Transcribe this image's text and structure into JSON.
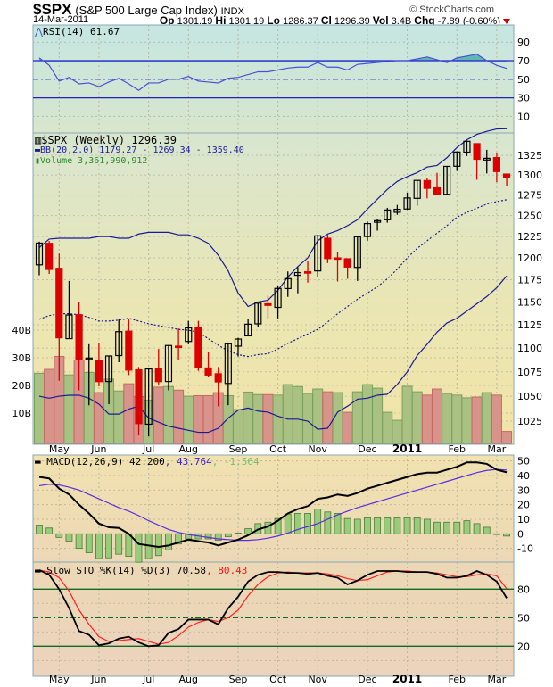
{
  "header": {
    "symbol": "$SPX",
    "name": "(S&P 500 Large Cap Index)",
    "exchange": "INDX",
    "brand": "© StockCharts.com",
    "date": "14-Mar-2011",
    "op_label": "Op",
    "op": "1301.19",
    "hi_label": "Hi",
    "hi": "1301.19",
    "lo_label": "Lo",
    "lo": "1286.37",
    "cl_label": "Cl",
    "cl": "1296.39",
    "vol_label": "Vol",
    "vol": "3.4B",
    "chg_label": "Chg",
    "chg": "-7.89 (-0.60%)",
    "chg_direction": "down"
  },
  "legends": {
    "rsi": "RSI(14) 61.67",
    "price": "$SPX (Weekly) 1296.39",
    "bb": "BB(20,2.0) 1179.27 - 1269.34 - 1359.40",
    "volume": "Volume 3,361,990,912",
    "macd_main": "MACD(12,26,9) 42.200",
    "macd_signal": ", 43.764",
    "macd_hist": ", -1.564",
    "sto_main": "Slow STO %K(14) %D(3) 70.58",
    "sto_d": ", 80.43"
  },
  "colors": {
    "up_candle": "#000000",
    "down_candle": "#dd0000",
    "bb": "#1a1a99",
    "volume_up": "#a9c283",
    "volume_down": "#d8948a",
    "rsi": "#4a50d8",
    "macd": "#000000",
    "macd_signal": "#5a2de0",
    "macd_hist": "#98cc78",
    "sto_k": "#000000",
    "sto_d": "#ff2020"
  },
  "chart_data": [
    {
      "type": "candlestick",
      "title": "$SPX (Weekly)",
      "yscale": "log",
      "ylim": [
        1005,
        1360
      ],
      "grid": true,
      "y_ticks": [
        1025,
        1050,
        1075,
        1100,
        1125,
        1150,
        1175,
        1200,
        1225,
        1250,
        1275,
        1300,
        1325
      ],
      "x_ticks": [
        {
          "label": "May",
          "date": "2010-05-07"
        },
        {
          "label": "Jun",
          "date": "2010-06-04"
        },
        {
          "label": "Jul",
          "date": "2010-07-09"
        },
        {
          "label": "Aug",
          "date": "2010-08-06"
        },
        {
          "label": "Sep",
          "date": "2010-09-10"
        },
        {
          "label": "Oct",
          "date": "2010-10-08"
        },
        {
          "label": "Nov",
          "date": "2010-11-05"
        },
        {
          "label": "Dec",
          "date": "2010-12-10"
        },
        {
          "label": "2011",
          "date": "2011-01-07",
          "bold": true
        },
        {
          "label": "Feb",
          "date": "2011-02-11"
        },
        {
          "label": "Mar",
          "date": "2011-03-11"
        }
      ],
      "dates": [
        "2010-04-23",
        "2010-04-30",
        "2010-05-07",
        "2010-05-14",
        "2010-05-21",
        "2010-05-28",
        "2010-06-04",
        "2010-06-11",
        "2010-06-18",
        "2010-06-25",
        "2010-07-02",
        "2010-07-09",
        "2010-07-16",
        "2010-07-23",
        "2010-07-30",
        "2010-08-06",
        "2010-08-13",
        "2010-08-20",
        "2010-08-27",
        "2010-09-03",
        "2010-09-10",
        "2010-09-17",
        "2010-09-24",
        "2010-10-01",
        "2010-10-08",
        "2010-10-15",
        "2010-10-22",
        "2010-10-29",
        "2010-11-05",
        "2010-11-12",
        "2010-11-19",
        "2010-11-26",
        "2010-12-03",
        "2010-12-10",
        "2010-12-17",
        "2010-12-23",
        "2010-12-31",
        "2011-01-07",
        "2011-01-14",
        "2011-01-21",
        "2011-01-28",
        "2011-02-04",
        "2011-02-11",
        "2011-02-18",
        "2011-02-25",
        "2011-03-04",
        "2011-03-11",
        "2011-03-14"
      ],
      "open": [
        1192,
        1217,
        1188,
        1110,
        1136,
        1088,
        1087,
        1065,
        1092,
        1118,
        1077,
        1022,
        1078,
        1065,
        1102,
        1107,
        1122,
        1079,
        1073,
        1063,
        1102,
        1113,
        1126,
        1148,
        1144,
        1165,
        1180,
        1184,
        1185,
        1223,
        1200,
        1199,
        1189,
        1225,
        1242,
        1245,
        1254,
        1258,
        1271,
        1293,
        1284,
        1276,
        1311,
        1329,
        1340,
        1319,
        1322,
        1301.19
      ],
      "high": [
        1219,
        1219.8,
        1205,
        1173.6,
        1150,
        1104,
        1105.7,
        1092,
        1131,
        1131,
        1080,
        1078,
        1099,
        1103,
        1120.9,
        1129.2,
        1129.2,
        1095.6,
        1080,
        1105,
        1110.9,
        1131.5,
        1148.9,
        1157,
        1167.7,
        1184.4,
        1189.4,
        1196,
        1227,
        1227.1,
        1207,
        1199,
        1225.6,
        1243,
        1246,
        1259.4,
        1263,
        1278,
        1293,
        1296,
        1302.7,
        1311,
        1330,
        1344,
        1340,
        1332,
        1327.7,
        1301.19
      ],
      "low": [
        1180,
        1181.6,
        1065.8,
        1110,
        1055.9,
        1040.8,
        1060,
        1042,
        1085,
        1071.6,
        1010.9,
        1010,
        1062,
        1056,
        1087,
        1104,
        1076,
        1069.6,
        1039.7,
        1040.9,
        1091,
        1113,
        1122.8,
        1131.9,
        1131.9,
        1155.7,
        1159.7,
        1171.7,
        1177.7,
        1194,
        1173,
        1176,
        1173.6,
        1220,
        1232,
        1241.5,
        1251,
        1257,
        1262,
        1271,
        1275,
        1276,
        1305,
        1324,
        1294,
        1302,
        1291,
        1286.37
      ],
      "close": [
        1217.28,
        1186.69,
        1110.88,
        1135.68,
        1087.69,
        1089.41,
        1064.88,
        1091.6,
        1117.51,
        1076.76,
        1022.58,
        1077.96,
        1064.88,
        1102.66,
        1101.6,
        1121.64,
        1079.25,
        1071.69,
        1064.59,
        1104.51,
        1109.55,
        1125.59,
        1148.67,
        1146.24,
        1165.15,
        1176.19,
        1183.08,
        1183.26,
        1225.85,
        1199.21,
        1199.73,
        1189.4,
        1224.71,
        1240.4,
        1243.91,
        1256.77,
        1257.64,
        1271.5,
        1293.24,
        1283.35,
        1276.34,
        1310.87,
        1329.15,
        1343.01,
        1319.88,
        1321.15,
        1304.28,
        1296.39
      ],
      "bb_upper": [
        1212,
        1222,
        1223,
        1223,
        1223,
        1223,
        1225,
        1225,
        1223,
        1223,
        1228,
        1230,
        1230,
        1230,
        1227,
        1227,
        1223,
        1217,
        1203,
        1185,
        1160,
        1145,
        1150,
        1152,
        1163,
        1178,
        1190,
        1200,
        1220,
        1228,
        1232,
        1238,
        1245,
        1258,
        1270,
        1282,
        1292,
        1298,
        1303,
        1310,
        1312,
        1322,
        1335,
        1345,
        1352,
        1356,
        1359,
        1359.4
      ],
      "bb_middle": [
        1131,
        1135,
        1137,
        1137,
        1136,
        1133,
        1129,
        1129,
        1130,
        1132,
        1129,
        1126,
        1124,
        1122,
        1120,
        1119,
        1117,
        1110,
        1103,
        1097,
        1093,
        1091,
        1093,
        1094,
        1099,
        1105,
        1110,
        1115,
        1120,
        1128,
        1137,
        1145,
        1153,
        1160,
        1167,
        1176,
        1187,
        1200,
        1211,
        1220,
        1229,
        1238,
        1248,
        1254,
        1259,
        1264,
        1267,
        1269.34
      ],
      "bb_lower": [
        1050,
        1048,
        1050,
        1051,
        1051,
        1048,
        1042,
        1032,
        1032,
        1037,
        1040,
        1028,
        1024,
        1020,
        1018,
        1016,
        1014,
        1014,
        1018,
        1028,
        1036,
        1038,
        1035,
        1034,
        1030,
        1027,
        1027,
        1025,
        1017,
        1018,
        1034,
        1040,
        1047,
        1048,
        1051,
        1052,
        1062,
        1075,
        1092,
        1104,
        1117,
        1127,
        1132,
        1140,
        1148,
        1156,
        1166,
        1179.27
      ],
      "volume_ticks": [
        "10B",
        "20B",
        "30B",
        "40B"
      ],
      "volume_billions": [
        24.4,
        25.8,
        30.5,
        23.8,
        29.2,
        24.7,
        17.4,
        22.3,
        18,
        20.6,
        16,
        14.7,
        19.4,
        19.6,
        18.3,
        16.1,
        16.3,
        16.3,
        17.4,
        16.3,
        11.3,
        17.6,
        16.7,
        16.7,
        16.5,
        20.3,
        19.6,
        17.1,
        18.7,
        17.7,
        17.4,
        10.3,
        17.7,
        20.3,
        19,
        10.3,
        7.4,
        19.7,
        17.7,
        16.5,
        18.7,
        17.1,
        16.5,
        15.5,
        15.8,
        17.4,
        16.5,
        3.36
      ]
    },
    {
      "type": "line",
      "title": "RSI(14)",
      "ylim": [
        0,
        110
      ],
      "y_ticks": [
        10,
        30,
        50,
        70,
        90
      ],
      "reference_lines": [
        30,
        50,
        70
      ],
      "values": [
        73,
        65,
        48,
        52,
        45,
        46,
        42,
        47,
        51,
        45,
        38,
        46,
        46,
        50,
        50,
        53,
        48,
        47,
        46,
        51,
        52,
        55,
        58,
        58,
        60,
        62,
        63,
        63,
        68,
        63,
        63,
        60,
        66,
        67,
        68,
        69,
        70,
        70,
        72,
        74,
        71,
        68,
        73,
        75,
        77,
        70,
        65,
        61.67
      ]
    },
    {
      "type": "line",
      "title": "MACD(12,26,9)",
      "ylim": [
        -18,
        54
      ],
      "y_ticks": [
        -10,
        0,
        10,
        20,
        30,
        40,
        50
      ],
      "macd": [
        39,
        38,
        31,
        27,
        20,
        14,
        7,
        4.5,
        4,
        0,
        -7,
        -8,
        -9,
        -8,
        -6,
        -4,
        -5,
        -6,
        -8,
        -6,
        -4,
        -1,
        3,
        5,
        9,
        14,
        17,
        19,
        24,
        25,
        27,
        26,
        28,
        31,
        33,
        35,
        37,
        39,
        41,
        42,
        42,
        44,
        46,
        49,
        49,
        48,
        44,
        42.2
      ],
      "signal": [
        33,
        34,
        33.5,
        32,
        30,
        27,
        24,
        21,
        18,
        15.5,
        12.5,
        9,
        6,
        3,
        1,
        -0.5,
        -1.5,
        -2.5,
        -3.5,
        -4,
        -4.5,
        -4.5,
        -4,
        -3,
        -1.5,
        0.5,
        3,
        5,
        7,
        10,
        13,
        15.5,
        18,
        20,
        22,
        24,
        26,
        28,
        30,
        32,
        34,
        36,
        38,
        40,
        42,
        43.5,
        44.2,
        43.764
      ]
    },
    {
      "type": "line",
      "title": "Slow STO %K(14) %D(3)",
      "ylim": [
        -10,
        102
      ],
      "y_ticks": [
        20,
        50,
        80
      ],
      "reference_lines": [
        20,
        50,
        80
      ],
      "k": [
        100,
        95,
        80,
        60,
        36,
        32,
        21,
        23,
        28,
        30,
        24,
        20,
        21,
        34,
        38,
        48,
        48,
        48,
        43,
        60,
        72,
        88,
        95,
        98,
        98,
        97,
        97,
        96,
        97,
        94,
        92,
        85,
        89,
        95,
        99,
        99,
        99,
        98,
        98,
        98,
        96,
        92,
        92,
        94,
        99,
        95,
        88,
        70.58
      ],
      "d": [
        100,
        98,
        92,
        78,
        58,
        43,
        30,
        25,
        26,
        27,
        28,
        25,
        22,
        24,
        31,
        40,
        45,
        48,
        46,
        50,
        58,
        73,
        85,
        93,
        97,
        98,
        97,
        97,
        97,
        96,
        94,
        91,
        89,
        90,
        94,
        98,
        99,
        99,
        98,
        98,
        97,
        95,
        93,
        93,
        95,
        96,
        94,
        80.43
      ]
    }
  ]
}
